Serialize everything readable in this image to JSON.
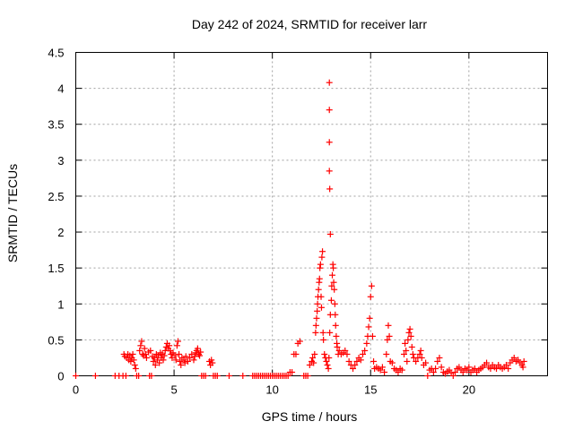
{
  "chart_data": {
    "type": "scatter",
    "title": "Day 242 of 2024, SRMTID for receiver larr",
    "xlabel": "GPS time / hours",
    "ylabel": "SRMTID / TECUs",
    "xlim": [
      0,
      24
    ],
    "ylim": [
      0,
      4.5
    ],
    "xticks": [
      0,
      5,
      10,
      15,
      20
    ],
    "xtick_labels": [
      "0",
      "5",
      "10",
      "15",
      "20"
    ],
    "yticks": [
      0,
      0.5,
      1,
      1.5,
      2,
      2.5,
      3,
      3.5,
      4,
      4.5
    ],
    "ytick_labels": [
      "0",
      "0.5",
      "1",
      "1.5",
      "2",
      "2.5",
      "3",
      "3.5",
      "4",
      "4.5"
    ],
    "grid": true,
    "marker": "+",
    "color": "#ff0000",
    "series": [
      {
        "name": "SRMTID",
        "points": [
          [
            0.0,
            0
          ],
          [
            1.0,
            0
          ],
          [
            2.0,
            0
          ],
          [
            2.2,
            0
          ],
          [
            2.4,
            0
          ],
          [
            2.55,
            0
          ],
          [
            2.45,
            0.3
          ],
          [
            2.5,
            0.27
          ],
          [
            2.6,
            0.25
          ],
          [
            2.65,
            0.3
          ],
          [
            2.7,
            0.22
          ],
          [
            2.75,
            0.28
          ],
          [
            2.8,
            0.2
          ],
          [
            2.85,
            0.25
          ],
          [
            2.9,
            0.3
          ],
          [
            2.95,
            0.22
          ],
          [
            3.0,
            0.15
          ],
          [
            3.05,
            0.1
          ],
          [
            3.1,
            0
          ],
          [
            3.2,
            0
          ],
          [
            3.25,
            0.35
          ],
          [
            3.3,
            0.42
          ],
          [
            3.35,
            0.48
          ],
          [
            3.4,
            0.3
          ],
          [
            3.45,
            0.28
          ],
          [
            3.5,
            0.38
          ],
          [
            3.55,
            0.3
          ],
          [
            3.6,
            0.25
          ],
          [
            3.7,
            0.33
          ],
          [
            3.75,
            0
          ],
          [
            3.8,
            0.35
          ],
          [
            3.85,
            0
          ],
          [
            3.9,
            0.27
          ],
          [
            3.95,
            0.2
          ],
          [
            4.0,
            0.25
          ],
          [
            4.05,
            0.15
          ],
          [
            4.1,
            0.3
          ],
          [
            4.15,
            0.22
          ],
          [
            4.2,
            0.28
          ],
          [
            4.25,
            0.18
          ],
          [
            4.3,
            0.32
          ],
          [
            4.35,
            0.25
          ],
          [
            4.4,
            0.3
          ],
          [
            4.45,
            0.22
          ],
          [
            4.5,
            0.28
          ],
          [
            4.55,
            0.35
          ],
          [
            4.6,
            0.4
          ],
          [
            4.65,
            0.45
          ],
          [
            4.7,
            0.38
          ],
          [
            4.75,
            0.42
          ],
          [
            4.8,
            0.35
          ],
          [
            4.85,
            0.3
          ],
          [
            4.9,
            0.25
          ],
          [
            4.95,
            0.32
          ],
          [
            5.05,
            0.28
          ],
          [
            5.1,
            0.22
          ],
          [
            5.15,
            0.42
          ],
          [
            5.2,
            0.48
          ],
          [
            5.25,
            0.3
          ],
          [
            5.3,
            0.2
          ],
          [
            5.35,
            0.15
          ],
          [
            5.4,
            0.25
          ],
          [
            5.5,
            0.22
          ],
          [
            5.55,
            0.18
          ],
          [
            5.6,
            0.27
          ],
          [
            5.7,
            0.2
          ],
          [
            5.8,
            0.25
          ],
          [
            5.9,
            0.3
          ],
          [
            6.0,
            0.22
          ],
          [
            6.05,
            0.27
          ],
          [
            6.1,
            0.32
          ],
          [
            6.15,
            0.35
          ],
          [
            6.2,
            0.38
          ],
          [
            6.25,
            0.3
          ],
          [
            6.3,
            0.28
          ],
          [
            6.35,
            0.33
          ],
          [
            6.4,
            0
          ],
          [
            6.5,
            0
          ],
          [
            6.6,
            0
          ],
          [
            6.8,
            0.2
          ],
          [
            6.85,
            0.15
          ],
          [
            6.9,
            0.22
          ],
          [
            6.95,
            0.18
          ],
          [
            7.0,
            0
          ],
          [
            7.1,
            0
          ],
          [
            7.2,
            0
          ],
          [
            7.8,
            0
          ],
          [
            8.5,
            0
          ],
          [
            9.0,
            0
          ],
          [
            9.1,
            0
          ],
          [
            9.2,
            0
          ],
          [
            9.3,
            0
          ],
          [
            9.4,
            0
          ],
          [
            9.5,
            0
          ],
          [
            9.6,
            0
          ],
          [
            9.7,
            0
          ],
          [
            9.8,
            0
          ],
          [
            9.9,
            0
          ],
          [
            10.0,
            0
          ],
          [
            10.1,
            0
          ],
          [
            10.2,
            0
          ],
          [
            10.3,
            0
          ],
          [
            10.4,
            0
          ],
          [
            10.5,
            0
          ],
          [
            10.6,
            0
          ],
          [
            10.7,
            0
          ],
          [
            10.8,
            0
          ],
          [
            10.9,
            0.05
          ],
          [
            11.0,
            0.05
          ],
          [
            11.1,
            0.3
          ],
          [
            11.2,
            0.3
          ],
          [
            11.3,
            0.45
          ],
          [
            11.4,
            0.48
          ],
          [
            11.6,
            0
          ],
          [
            11.7,
            0
          ],
          [
            11.8,
            0
          ],
          [
            11.9,
            0.15
          ],
          [
            12.0,
            0.2
          ],
          [
            12.05,
            0.25
          ],
          [
            12.1,
            0.18
          ],
          [
            12.15,
            0.3
          ],
          [
            12.2,
            0.6
          ],
          [
            12.22,
            0.7
          ],
          [
            12.25,
            0.8
          ],
          [
            12.28,
            0.9
          ],
          [
            12.3,
            1.0
          ],
          [
            12.32,
            1.1
          ],
          [
            12.35,
            1.2
          ],
          [
            12.38,
            1.3
          ],
          [
            12.4,
            1.35
          ],
          [
            12.42,
            1.5
          ],
          [
            12.45,
            1.55
          ],
          [
            12.48,
            1.1
          ],
          [
            12.5,
            0.95
          ],
          [
            12.52,
            1.65
          ],
          [
            12.55,
            1.73
          ],
          [
            12.58,
            0.6
          ],
          [
            12.6,
            0.5
          ],
          [
            12.65,
            0.3
          ],
          [
            12.7,
            0.25
          ],
          [
            12.75,
            0.2
          ],
          [
            12.8,
            0.15
          ],
          [
            12.9,
            4.08
          ],
          [
            12.9,
            3.7
          ],
          [
            12.9,
            3.25
          ],
          [
            12.9,
            2.85
          ],
          [
            12.92,
            2.6
          ],
          [
            12.95,
            1.97
          ],
          [
            12.85,
            0.1
          ],
          [
            12.88,
            0.25
          ],
          [
            12.92,
            0.6
          ],
          [
            12.95,
            0.85
          ],
          [
            13.0,
            1.05
          ],
          [
            13.02,
            1.25
          ],
          [
            13.05,
            1.4
          ],
          [
            13.08,
            1.55
          ],
          [
            13.1,
            1.5
          ],
          [
            13.12,
            1.3
          ],
          [
            13.15,
            1.2
          ],
          [
            13.18,
            1.0
          ],
          [
            13.2,
            0.85
          ],
          [
            13.22,
            0.7
          ],
          [
            13.25,
            0.55
          ],
          [
            13.28,
            0.45
          ],
          [
            13.3,
            0.4
          ],
          [
            13.35,
            0.3
          ],
          [
            13.4,
            0.35
          ],
          [
            13.5,
            0.3
          ],
          [
            13.6,
            0.32
          ],
          [
            13.7,
            0.35
          ],
          [
            13.8,
            0.3
          ],
          [
            13.9,
            0.2
          ],
          [
            14.0,
            0.15
          ],
          [
            14.1,
            0.1
          ],
          [
            14.2,
            0.15
          ],
          [
            14.3,
            0.2
          ],
          [
            14.4,
            0.25
          ],
          [
            14.5,
            0.22
          ],
          [
            14.6,
            0.3
          ],
          [
            14.7,
            0.35
          ],
          [
            14.8,
            0.45
          ],
          [
            14.85,
            0.55
          ],
          [
            14.9,
            0.68
          ],
          [
            14.95,
            0.8
          ],
          [
            15.0,
            1.1
          ],
          [
            15.05,
            1.25
          ],
          [
            15.1,
            0.55
          ],
          [
            15.15,
            0.2
          ],
          [
            15.2,
            0.1
          ],
          [
            15.3,
            0.12
          ],
          [
            15.4,
            0.1
          ],
          [
            15.5,
            0.08
          ],
          [
            15.6,
            0.12
          ],
          [
            15.7,
            0.05
          ],
          [
            15.8,
            0.3
          ],
          [
            15.85,
            0.5
          ],
          [
            15.9,
            0.7
          ],
          [
            15.95,
            0.55
          ],
          [
            16.0,
            0.2
          ],
          [
            16.1,
            0.18
          ],
          [
            16.2,
            0.1
          ],
          [
            16.3,
            0.08
          ],
          [
            16.4,
            0.05
          ],
          [
            16.5,
            0.1
          ],
          [
            16.6,
            0.08
          ],
          [
            16.7,
            0.3
          ],
          [
            16.75,
            0.45
          ],
          [
            16.8,
            0.35
          ],
          [
            16.85,
            0.2
          ],
          [
            16.9,
            0.5
          ],
          [
            16.95,
            0.6
          ],
          [
            17.0,
            0.65
          ],
          [
            17.05,
            0.55
          ],
          [
            17.1,
            0.4
          ],
          [
            17.15,
            0.3
          ],
          [
            17.2,
            0.25
          ],
          [
            17.3,
            0.2
          ],
          [
            17.4,
            0.25
          ],
          [
            17.5,
            0.3
          ],
          [
            17.55,
            0.35
          ],
          [
            17.6,
            0.25
          ],
          [
            17.7,
            0.15
          ],
          [
            17.8,
            0.18
          ],
          [
            17.9,
            0
          ],
          [
            18.0,
            0.08
          ],
          [
            18.1,
            0.1
          ],
          [
            18.2,
            0.05
          ],
          [
            18.3,
            0.1
          ],
          [
            18.4,
            0.2
          ],
          [
            18.5,
            0.25
          ],
          [
            18.6,
            0.12
          ],
          [
            18.7,
            0.05
          ],
          [
            18.8,
            0.03
          ],
          [
            18.9,
            0.06
          ],
          [
            19.0,
            0.08
          ],
          [
            19.1,
            0.04
          ],
          [
            19.2,
            0
          ],
          [
            19.3,
            0.05
          ],
          [
            19.4,
            0.1
          ],
          [
            19.5,
            0.12
          ],
          [
            19.6,
            0.08
          ],
          [
            19.7,
            0.05
          ],
          [
            19.8,
            0.1
          ],
          [
            19.9,
            0.08
          ],
          [
            20.0,
            0.12
          ],
          [
            20.1,
            0.05
          ],
          [
            20.2,
            0.08
          ],
          [
            20.3,
            0.1
          ],
          [
            20.4,
            0.05
          ],
          [
            20.5,
            0.08
          ],
          [
            20.6,
            0.1
          ],
          [
            20.7,
            0.12
          ],
          [
            20.8,
            0.15
          ],
          [
            20.9,
            0.18
          ],
          [
            21.0,
            0.12
          ],
          [
            21.1,
            0.1
          ],
          [
            21.2,
            0.15
          ],
          [
            21.3,
            0.12
          ],
          [
            21.4,
            0.1
          ],
          [
            21.5,
            0.15
          ],
          [
            21.6,
            0.12
          ],
          [
            21.7,
            0.1
          ],
          [
            21.8,
            0.12
          ],
          [
            21.9,
            0.15
          ],
          [
            22.0,
            0.1
          ],
          [
            22.1,
            0.18
          ],
          [
            22.2,
            0.22
          ],
          [
            22.3,
            0.25
          ],
          [
            22.4,
            0.2
          ],
          [
            22.5,
            0.22
          ],
          [
            22.6,
            0.18
          ],
          [
            22.7,
            0.15
          ],
          [
            22.75,
            0.12
          ],
          [
            22.8,
            0.2
          ]
        ]
      }
    ]
  }
}
